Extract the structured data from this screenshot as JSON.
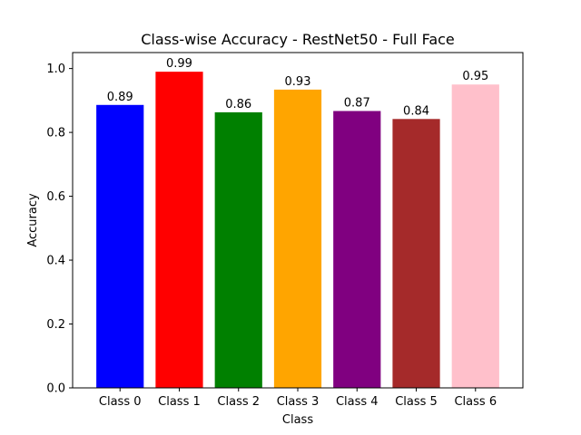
{
  "chart_data": {
    "type": "bar",
    "title": "Class-wise Accuracy - RestNet50 - Full Face",
    "xlabel": "Class",
    "ylabel": "Accuracy",
    "categories": [
      "Class 0",
      "Class 1",
      "Class 2",
      "Class 3",
      "Class 4",
      "Class 5",
      "Class 6"
    ],
    "values": [
      0.886,
      0.99,
      0.863,
      0.934,
      0.867,
      0.842,
      0.95
    ],
    "data_labels": [
      "0.89",
      "0.99",
      "0.86",
      "0.93",
      "0.87",
      "0.84",
      "0.95"
    ],
    "colors": [
      "#0000ff",
      "#ff0000",
      "#008000",
      "#ffa500",
      "#800080",
      "#a52a2a",
      "#ffc0cb"
    ],
    "ylim": [
      0,
      1.05
    ],
    "yticks": [
      0.0,
      0.2,
      0.4,
      0.6,
      0.8,
      1.0
    ],
    "ytick_labels": [
      "0.0",
      "0.2",
      "0.4",
      "0.6",
      "0.8",
      "1.0"
    ],
    "grid": false,
    "legend": "none"
  }
}
